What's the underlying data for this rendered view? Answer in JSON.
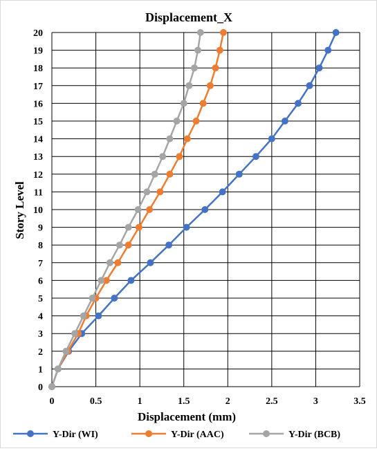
{
  "chart_data": {
    "type": "line",
    "title": "Displacement_X",
    "xlabel": "Displacement (mm)",
    "ylabel": "Story Level",
    "xlim": [
      0,
      3.5
    ],
    "ylim": [
      0,
      20
    ],
    "x_ticks": [
      "0",
      "0.5",
      "1",
      "1.5",
      "2",
      "2.5",
      "3",
      "3.5"
    ],
    "y_ticks": [
      "0",
      "1",
      "2",
      "3",
      "4",
      "5",
      "6",
      "7",
      "8",
      "9",
      "10",
      "11",
      "12",
      "13",
      "14",
      "15",
      "16",
      "17",
      "18",
      "19",
      "20"
    ],
    "grid": true,
    "legend_position": "bottom",
    "story_levels": [
      0,
      1,
      2,
      3,
      4,
      5,
      6,
      7,
      8,
      9,
      10,
      11,
      12,
      13,
      14,
      15,
      16,
      17,
      18,
      19,
      20
    ],
    "series": [
      {
        "name": "Y-Dir (WI)",
        "color": "#4472C4",
        "x": [
          0,
          0.07,
          0.19,
          0.34,
          0.53,
          0.71,
          0.9,
          1.12,
          1.33,
          1.53,
          1.74,
          1.94,
          2.13,
          2.32,
          2.5,
          2.65,
          2.8,
          2.93,
          3.04,
          3.14,
          3.23
        ]
      },
      {
        "name": "Y-Dir (AAC)",
        "color": "#ED7D31",
        "x": [
          0,
          0.07,
          0.18,
          0.3,
          0.39,
          0.5,
          0.62,
          0.75,
          0.87,
          0.99,
          1.11,
          1.23,
          1.34,
          1.45,
          1.54,
          1.64,
          1.72,
          1.8,
          1.86,
          1.91,
          1.95
        ]
      },
      {
        "name": "Y-Dir (BCB)",
        "color": "#A5A5A5",
        "x": [
          0,
          0.07,
          0.16,
          0.26,
          0.36,
          0.46,
          0.56,
          0.66,
          0.77,
          0.87,
          0.98,
          1.08,
          1.17,
          1.26,
          1.34,
          1.42,
          1.5,
          1.56,
          1.62,
          1.66,
          1.69
        ]
      }
    ]
  }
}
